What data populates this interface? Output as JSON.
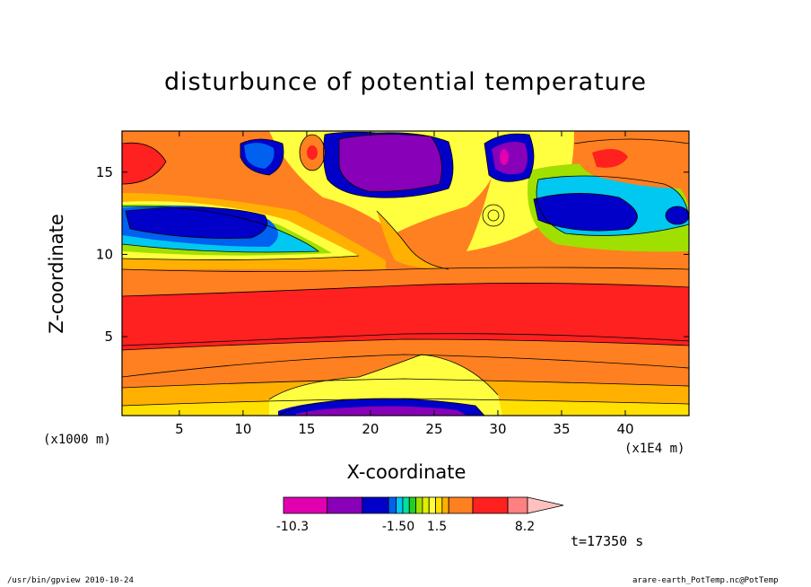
{
  "chart_data": {
    "type": "heatmap",
    "title": "disturbunce of potential temperature",
    "xlabel": "X-coordinate",
    "ylabel": "Z-coordinate",
    "x_unit": "(x1E4 m)",
    "y_unit": "(x1000 m)",
    "xlim": [
      0.5,
      45
    ],
    "ylim": [
      0.2,
      17.5
    ],
    "x_ticks": [
      "5",
      "10",
      "15",
      "20",
      "25",
      "30",
      "35",
      "40"
    ],
    "y_ticks": [
      "5",
      "10",
      "15"
    ],
    "colorbar": {
      "labels": [
        "-10.3",
        "-1.50",
        "1.5",
        "8.2"
      ],
      "levels": [
        -10.3,
        -8.2,
        -6.1,
        -4.0,
        -3.0,
        -2.5,
        -2.0,
        -1.5,
        -1.0,
        -0.5,
        0,
        0.5,
        1.0,
        1.5,
        3.0,
        4.5,
        6.1,
        8.2
      ],
      "colors": [
        "#e000b0",
        "#8800b8",
        "#0000c8",
        "#0060f0",
        "#00c8f0",
        "#00e0a0",
        "#20d020",
        "#a0e000",
        "#e0f000",
        "#ffff40",
        "#ffe000",
        "#ffb000",
        "#ff8020",
        "#ff2020",
        "#ff8080",
        "#ffc0c0"
      ]
    },
    "annotation": "t=17350 s"
  },
  "footer": {
    "left": "/usr/bin/gpview   2010-10-24",
    "right": "arare-earth_PotTemp.nc@PotTemp"
  }
}
